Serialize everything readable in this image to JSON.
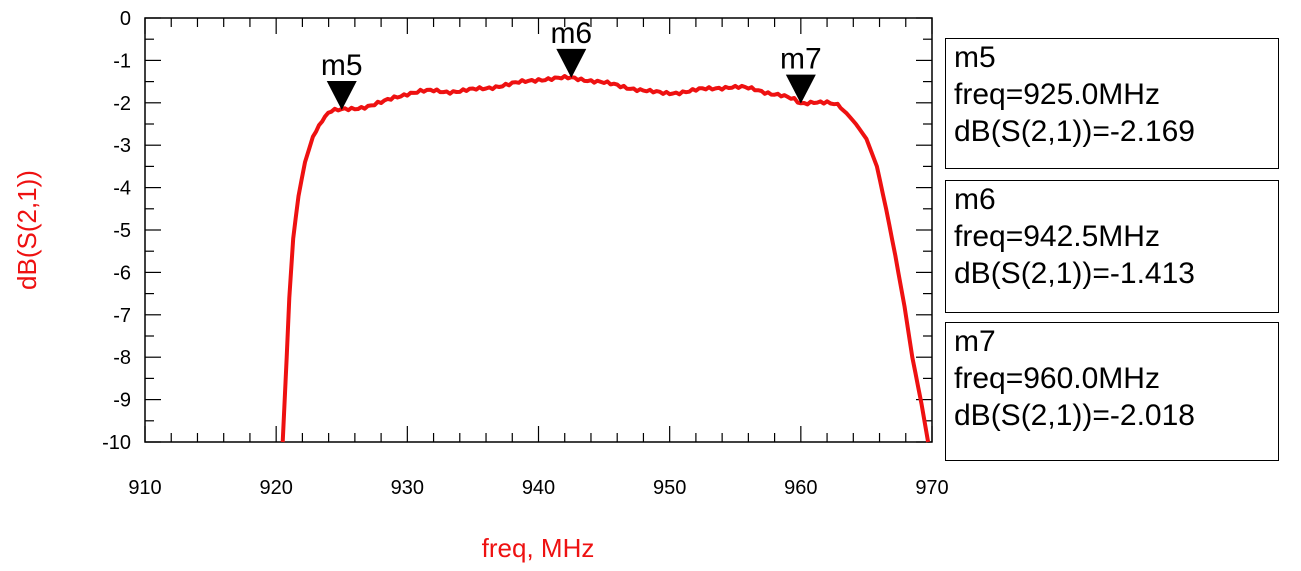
{
  "chart_data": {
    "type": "line",
    "xlabel": "freq, MHz",
    "ylabel": "dB(S(2,1))",
    "xlim": [
      910,
      970
    ],
    "ylim": [
      -10,
      0
    ],
    "x_ticks": [
      "910",
      "920",
      "930",
      "940",
      "950",
      "960",
      "970"
    ],
    "y_ticks": [
      "0",
      "-1",
      "-2",
      "-3",
      "-4",
      "-5",
      "-6",
      "-7",
      "-8",
      "-9",
      "-10"
    ],
    "grid": false,
    "series": [
      {
        "color": "#ee1111",
        "points": [
          [
            920.5,
            -10.0
          ],
          [
            920.8,
            -8.0
          ],
          [
            921.0,
            -6.6
          ],
          [
            921.3,
            -5.2
          ],
          [
            921.7,
            -4.2
          ],
          [
            922.2,
            -3.4
          ],
          [
            922.8,
            -2.8
          ],
          [
            923.5,
            -2.4
          ],
          [
            924.2,
            -2.2
          ],
          [
            925.0,
            -2.169
          ],
          [
            926.0,
            -2.13
          ],
          [
            927.0,
            -2.08
          ],
          [
            928.0,
            -2.0
          ],
          [
            929.0,
            -1.88
          ],
          [
            930.0,
            -1.78
          ],
          [
            931.0,
            -1.73
          ],
          [
            932.0,
            -1.72
          ],
          [
            933.0,
            -1.74
          ],
          [
            934.0,
            -1.72
          ],
          [
            935.0,
            -1.69
          ],
          [
            936.0,
            -1.66
          ],
          [
            937.0,
            -1.6
          ],
          [
            938.0,
            -1.55
          ],
          [
            939.0,
            -1.5
          ],
          [
            940.0,
            -1.45
          ],
          [
            941.0,
            -1.43
          ],
          [
            942.5,
            -1.413
          ],
          [
            943.5,
            -1.45
          ],
          [
            944.5,
            -1.5
          ],
          [
            945.5,
            -1.56
          ],
          [
            946.5,
            -1.62
          ],
          [
            947.5,
            -1.68
          ],
          [
            948.5,
            -1.74
          ],
          [
            949.5,
            -1.77
          ],
          [
            950.5,
            -1.76
          ],
          [
            951.5,
            -1.73
          ],
          [
            952.5,
            -1.68
          ],
          [
            953.5,
            -1.65
          ],
          [
            954.5,
            -1.63
          ],
          [
            955.5,
            -1.64
          ],
          [
            956.5,
            -1.68
          ],
          [
            957.5,
            -1.76
          ],
          [
            958.5,
            -1.83
          ],
          [
            959.5,
            -1.93
          ],
          [
            960.0,
            -2.018
          ],
          [
            961.0,
            -1.97
          ],
          [
            962.0,
            -2.0
          ],
          [
            962.8,
            -2.06
          ],
          [
            963.5,
            -2.25
          ],
          [
            964.2,
            -2.5
          ],
          [
            965.0,
            -2.85
          ],
          [
            965.8,
            -3.5
          ],
          [
            966.5,
            -4.5
          ],
          [
            967.2,
            -5.6
          ],
          [
            967.9,
            -6.8
          ],
          [
            968.5,
            -8.0
          ],
          [
            969.2,
            -9.1
          ],
          [
            969.7,
            -10.0
          ]
        ]
      }
    ],
    "markers": [
      {
        "name": "m5",
        "freq": 925.0,
        "value": -2.169,
        "label_freq": "freq=925.0MHz",
        "label_value": "dB(S(2,1))=-2.169"
      },
      {
        "name": "m6",
        "freq": 942.5,
        "value": -1.413,
        "label_freq": "freq=942.5MHz",
        "label_value": "dB(S(2,1))=-1.413"
      },
      {
        "name": "m7",
        "freq": 960.0,
        "value": -2.018,
        "label_freq": "freq=960.0MHz",
        "label_value": "dB(S(2,1))=-2.018"
      }
    ]
  }
}
